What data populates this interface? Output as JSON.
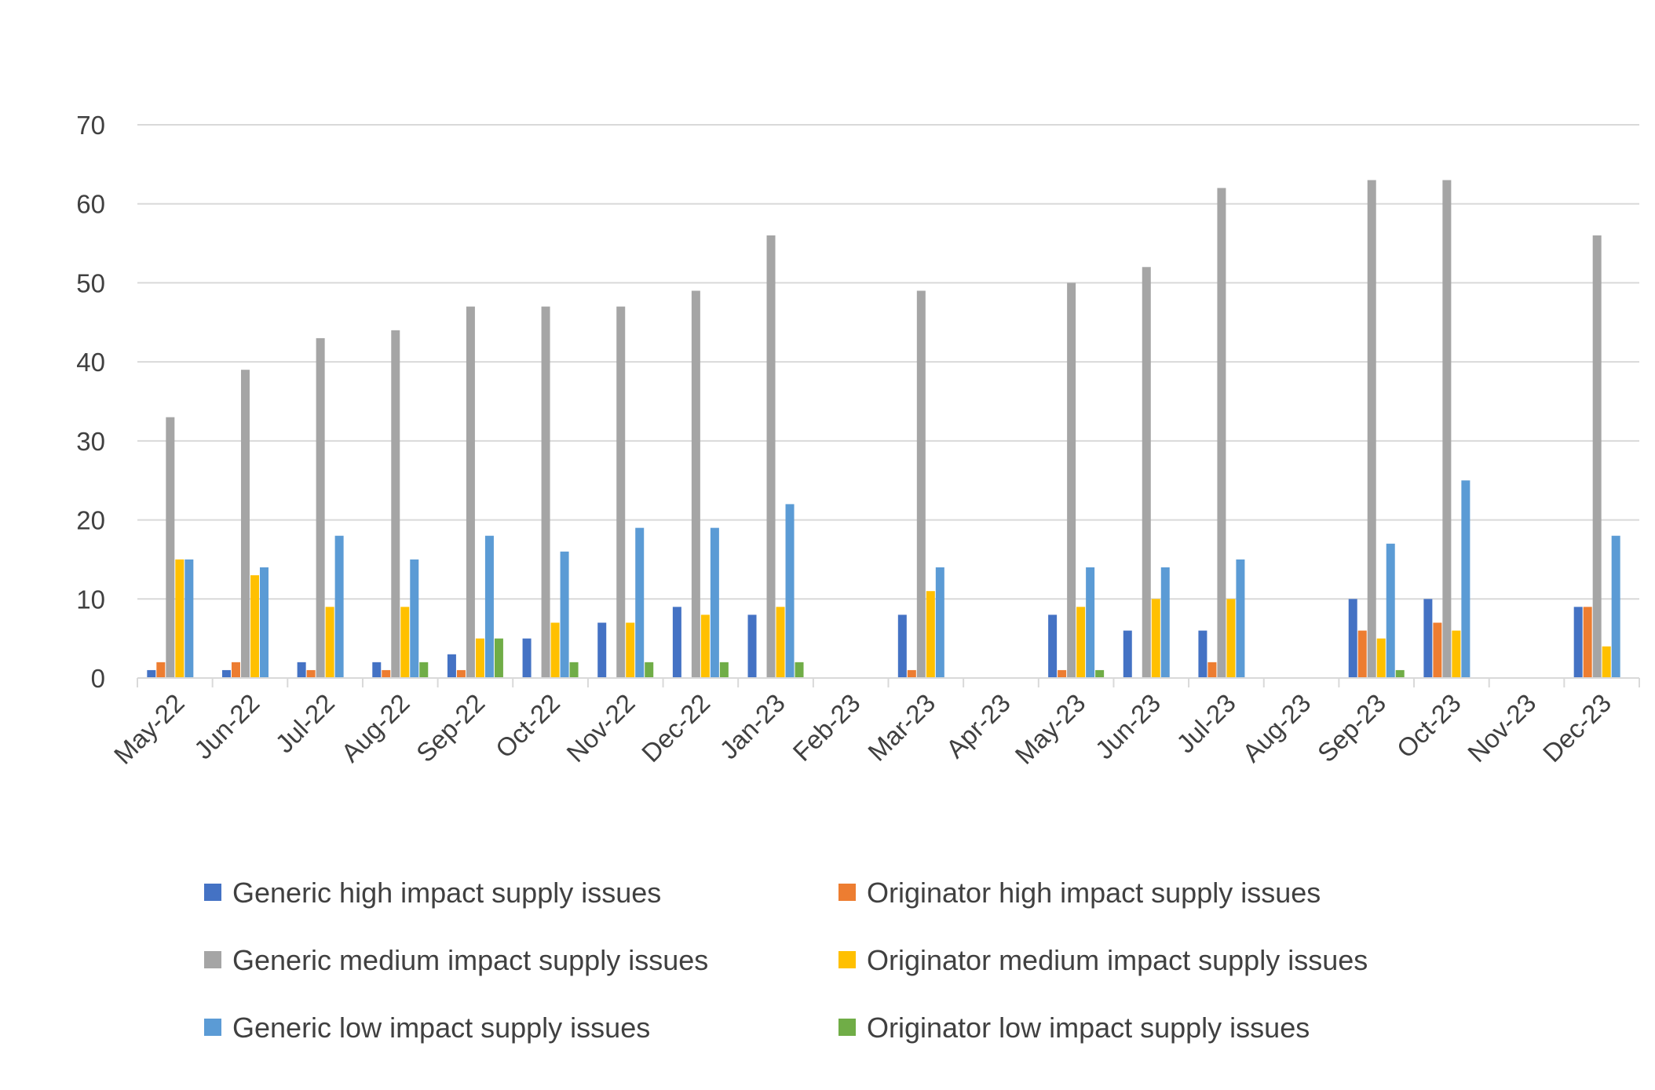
{
  "chart_data": {
    "type": "bar",
    "title": "",
    "xlabel": "",
    "ylabel": "",
    "ylim": [
      0,
      70
    ],
    "yticks": [
      0,
      10,
      20,
      30,
      40,
      50,
      60,
      70
    ],
    "grid": true,
    "legend_position": "bottom",
    "categories": [
      "May-22",
      "Jun-22",
      "Jul-22",
      "Aug-22",
      "Sep-22",
      "Oct-22",
      "Nov-22",
      "Dec-22",
      "Jan-23",
      "Feb-23",
      "Mar-23",
      "Apr-23",
      "May-23",
      "Jun-23",
      "Jul-23",
      "Aug-23",
      "Sep-23",
      "Oct-23",
      "Nov-23",
      "Dec-23"
    ],
    "series": [
      {
        "name": "Generic high impact supply issues",
        "color": "#4472C4",
        "values": [
          1,
          1,
          2,
          2,
          3,
          5,
          7,
          9,
          8,
          null,
          8,
          null,
          8,
          6,
          6,
          null,
          10,
          10,
          null,
          9
        ]
      },
      {
        "name": "Originator high impact supply issues",
        "color": "#ED7D31",
        "values": [
          2,
          2,
          1,
          1,
          1,
          0,
          0,
          0,
          0,
          null,
          1,
          null,
          1,
          0,
          2,
          null,
          6,
          7,
          null,
          9
        ]
      },
      {
        "name": "Generic medium impact supply issues",
        "color": "#A5A5A5",
        "values": [
          33,
          39,
          43,
          44,
          47,
          47,
          47,
          49,
          56,
          null,
          49,
          null,
          50,
          52,
          62,
          null,
          63,
          63,
          null,
          56
        ]
      },
      {
        "name": "Originator medium impact supply issues",
        "color": "#FFC000",
        "values": [
          15,
          13,
          9,
          9,
          5,
          7,
          7,
          8,
          9,
          null,
          11,
          null,
          9,
          10,
          10,
          null,
          5,
          6,
          null,
          4
        ]
      },
      {
        "name": "Generic low impact supply issues",
        "color": "#5B9BD5",
        "values": [
          15,
          14,
          18,
          15,
          18,
          16,
          19,
          19,
          22,
          null,
          14,
          null,
          14,
          14,
          15,
          null,
          17,
          25,
          null,
          18
        ]
      },
      {
        "name": "Originator low impact supply issues",
        "color": "#70AD47",
        "values": [
          0,
          0,
          0,
          2,
          5,
          2,
          2,
          2,
          2,
          null,
          0,
          null,
          1,
          0,
          0,
          null,
          1,
          0,
          null,
          0
        ]
      }
    ]
  }
}
